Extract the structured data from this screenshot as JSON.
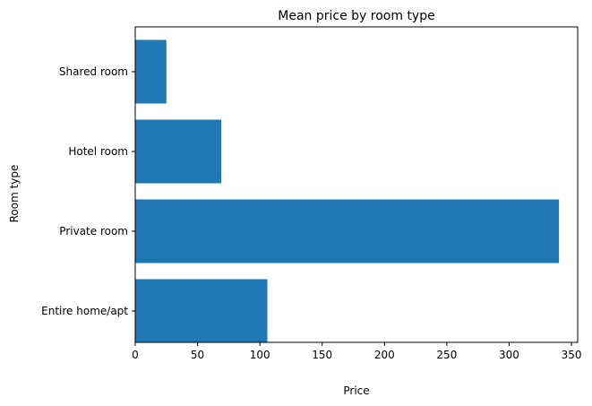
{
  "chart_data": {
    "type": "bar",
    "orientation": "horizontal",
    "title": "Mean price by room type",
    "xlabel": "Price",
    "ylabel": "Room type",
    "categories": [
      "Entire home/apt",
      "Private room",
      "Hotel room",
      "Shared room"
    ],
    "values": [
      106,
      340,
      69,
      25
    ],
    "xlim": [
      0,
      355
    ],
    "xticks": [
      0,
      50,
      100,
      150,
      200,
      250,
      300,
      350
    ],
    "bar_color": "#1f77b4",
    "grid": false,
    "legend": "none"
  }
}
